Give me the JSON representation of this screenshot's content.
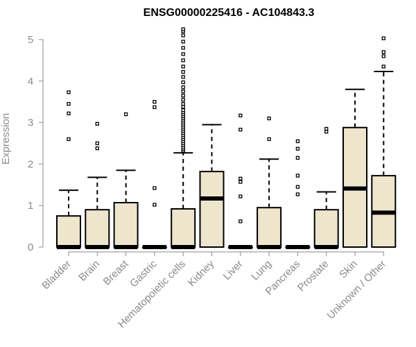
{
  "chart_data": {
    "type": "boxplot",
    "title": "ENSG00000225416 - AC104843.3",
    "xlabel": "",
    "ylabel": "Expression",
    "ylim": [
      0,
      5.2
    ],
    "yticks": [
      0,
      1,
      2,
      3,
      4,
      5
    ],
    "categories": [
      "Bladder",
      "Brain",
      "Breast",
      "Gastric",
      "Hematopoietic cells",
      "Kidney",
      "Liver",
      "Lung",
      "Pancreas",
      "Prostate",
      "Skin",
      "Unknown / Other"
    ],
    "boxes": [
      {
        "name": "Bladder",
        "min": 0,
        "q1": 0,
        "median": 0,
        "q3": 0.75,
        "max": 1.37,
        "outliers": [
          2.6,
          3.22,
          3.45,
          3.73
        ]
      },
      {
        "name": "Brain",
        "min": 0,
        "q1": 0,
        "median": 0,
        "q3": 0.9,
        "max": 1.68,
        "outliers": [
          2.38,
          2.5,
          2.97
        ]
      },
      {
        "name": "Breast",
        "min": 0,
        "q1": 0,
        "median": 0,
        "q3": 1.07,
        "max": 1.85,
        "outliers": [
          3.2
        ]
      },
      {
        "name": "Gastric",
        "min": 0,
        "q1": 0,
        "median": 0,
        "q3": 0,
        "max": 0,
        "outliers": [
          1.02,
          1.42,
          3.37,
          3.5
        ]
      },
      {
        "name": "Hematopoietic cells",
        "min": 0,
        "q1": 0,
        "median": 0,
        "q3": 0.92,
        "max": 2.27,
        "outliers": [
          2.32,
          2.36,
          2.4,
          2.45,
          2.5,
          2.55,
          2.6,
          2.65,
          2.7,
          2.75,
          2.8,
          2.85,
          2.9,
          2.95,
          3.0,
          3.05,
          3.1,
          3.15,
          3.2,
          3.25,
          3.3,
          3.38,
          3.45,
          3.55,
          3.65,
          3.75,
          3.85,
          3.97,
          4.1,
          4.22,
          4.35,
          4.5,
          4.65,
          4.8,
          4.95,
          5.1,
          5.2,
          5.25
        ]
      },
      {
        "name": "Kidney",
        "min": 0,
        "q1": 0,
        "median": 1.17,
        "q3": 1.82,
        "max": 2.95,
        "outliers": []
      },
      {
        "name": "Liver",
        "min": 0,
        "q1": 0,
        "median": 0,
        "q3": 0,
        "max": 0,
        "outliers": [
          0.62,
          1.22,
          1.57,
          1.65,
          2.83,
          3.17
        ]
      },
      {
        "name": "Lung",
        "min": 0,
        "q1": 0,
        "median": 0,
        "q3": 0.95,
        "max": 2.12,
        "outliers": [
          2.6,
          3.1
        ]
      },
      {
        "name": "Pancreas",
        "min": 0,
        "q1": 0,
        "median": 0,
        "q3": 0,
        "max": 0,
        "outliers": [
          1.27,
          1.45,
          1.72,
          2.15,
          2.37,
          2.55
        ]
      },
      {
        "name": "Prostate",
        "min": 0,
        "q1": 0,
        "median": 0,
        "q3": 0.9,
        "max": 1.33,
        "outliers": [
          2.78,
          2.85
        ]
      },
      {
        "name": "Skin",
        "min": 0,
        "q1": 0,
        "median": 1.41,
        "q3": 2.88,
        "max": 3.8,
        "outliers": []
      },
      {
        "name": "Unknown / Other",
        "min": 0,
        "q1": 0,
        "median": 0.83,
        "q3": 1.72,
        "max": 4.23,
        "outliers": [
          4.35,
          4.6,
          4.7,
          5.03
        ]
      }
    ],
    "colors": {
      "box_fill": "#ede5cc",
      "box_stroke": "#000000",
      "axis": "#8a8a8a"
    },
    "grid": false,
    "legend": "none"
  }
}
